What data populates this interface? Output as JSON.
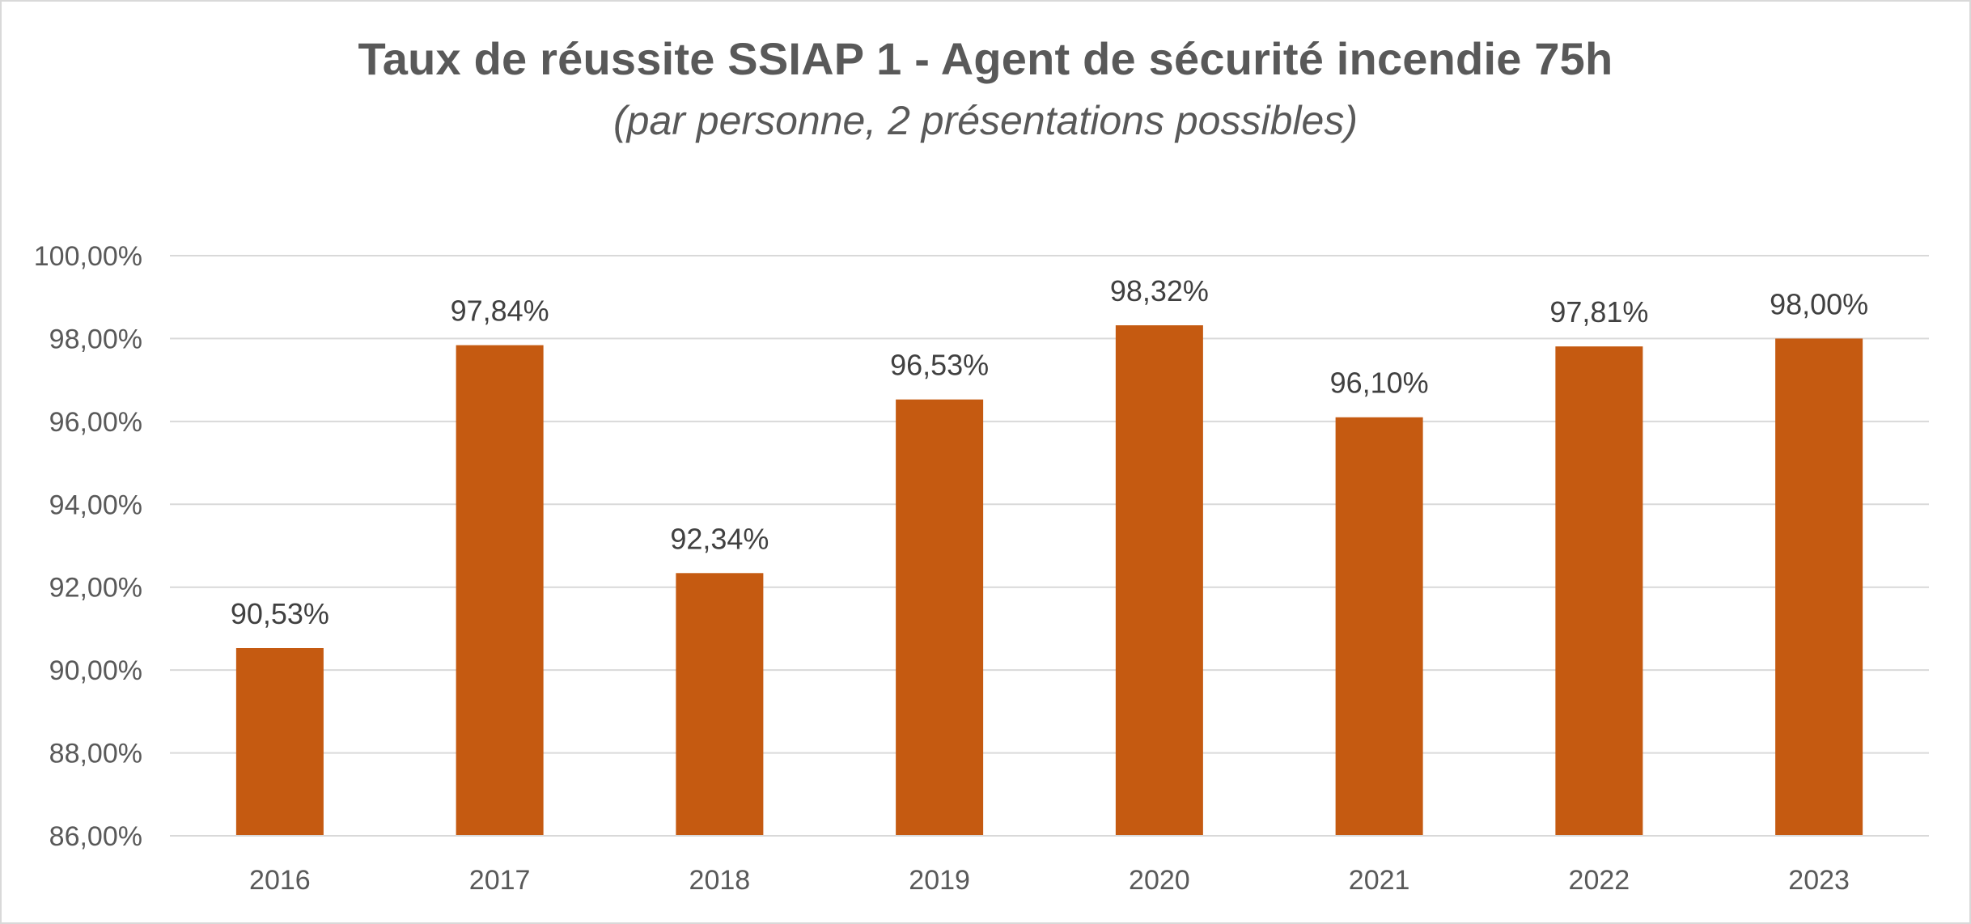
{
  "chart_data": {
    "type": "bar",
    "title": "Taux de réussite SSIAP 1 - Agent de sécurité incendie 75h",
    "subtitle": "(par personne, 2 présentations possibles)",
    "categories": [
      "2016",
      "2017",
      "2018",
      "2019",
      "2020",
      "2021",
      "2022",
      "2023"
    ],
    "values": [
      90.53,
      97.84,
      92.34,
      96.53,
      98.32,
      96.1,
      97.81,
      98.0
    ],
    "data_labels": [
      "90,53%",
      "97,84%",
      "92,34%",
      "96,53%",
      "98,32%",
      "96,10%",
      "97,81%",
      "98,00%"
    ],
    "ylim": [
      86,
      100
    ],
    "y_ticks": [
      86,
      88,
      90,
      92,
      94,
      96,
      98,
      100
    ],
    "y_tick_labels": [
      "86,00%",
      "88,00%",
      "90,00%",
      "92,00%",
      "94,00%",
      "96,00%",
      "98,00%",
      "100,00%"
    ],
    "xlabel": "",
    "ylabel": "",
    "grid": true,
    "legend": "none",
    "bar_color": "#C55A11",
    "grid_color": "#D9D9D9"
  }
}
